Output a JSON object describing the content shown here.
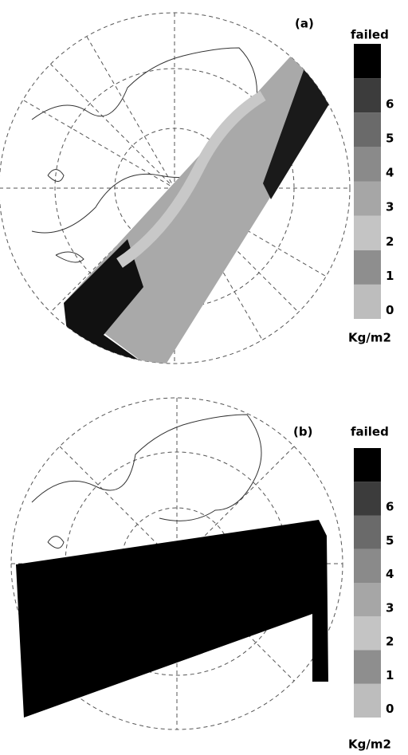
{
  "panels": [
    {
      "label": "(a)",
      "colorbar": {
        "title": "failed",
        "ticks": [
          0,
          1,
          2,
          3,
          4,
          5,
          6
        ],
        "unit": "Kg/m2",
        "colors": [
          "#bdbdbd",
          "#8e8e8e",
          "#c4c4c4",
          "#a6a6a6",
          "#8a8a8a",
          "#6a6a6a",
          "#3c3c3c",
          "#000000"
        ]
      }
    },
    {
      "label": "(b)",
      "colorbar": {
        "title": "failed",
        "ticks": [
          0,
          1,
          2,
          3,
          4,
          5,
          6
        ],
        "unit": "Kg/m2",
        "colors": [
          "#bdbdbd",
          "#8e8e8e",
          "#c4c4c4",
          "#a6a6a6",
          "#8a8a8a",
          "#6a6a6a",
          "#3c3c3c",
          "#000000"
        ]
      }
    }
  ]
}
